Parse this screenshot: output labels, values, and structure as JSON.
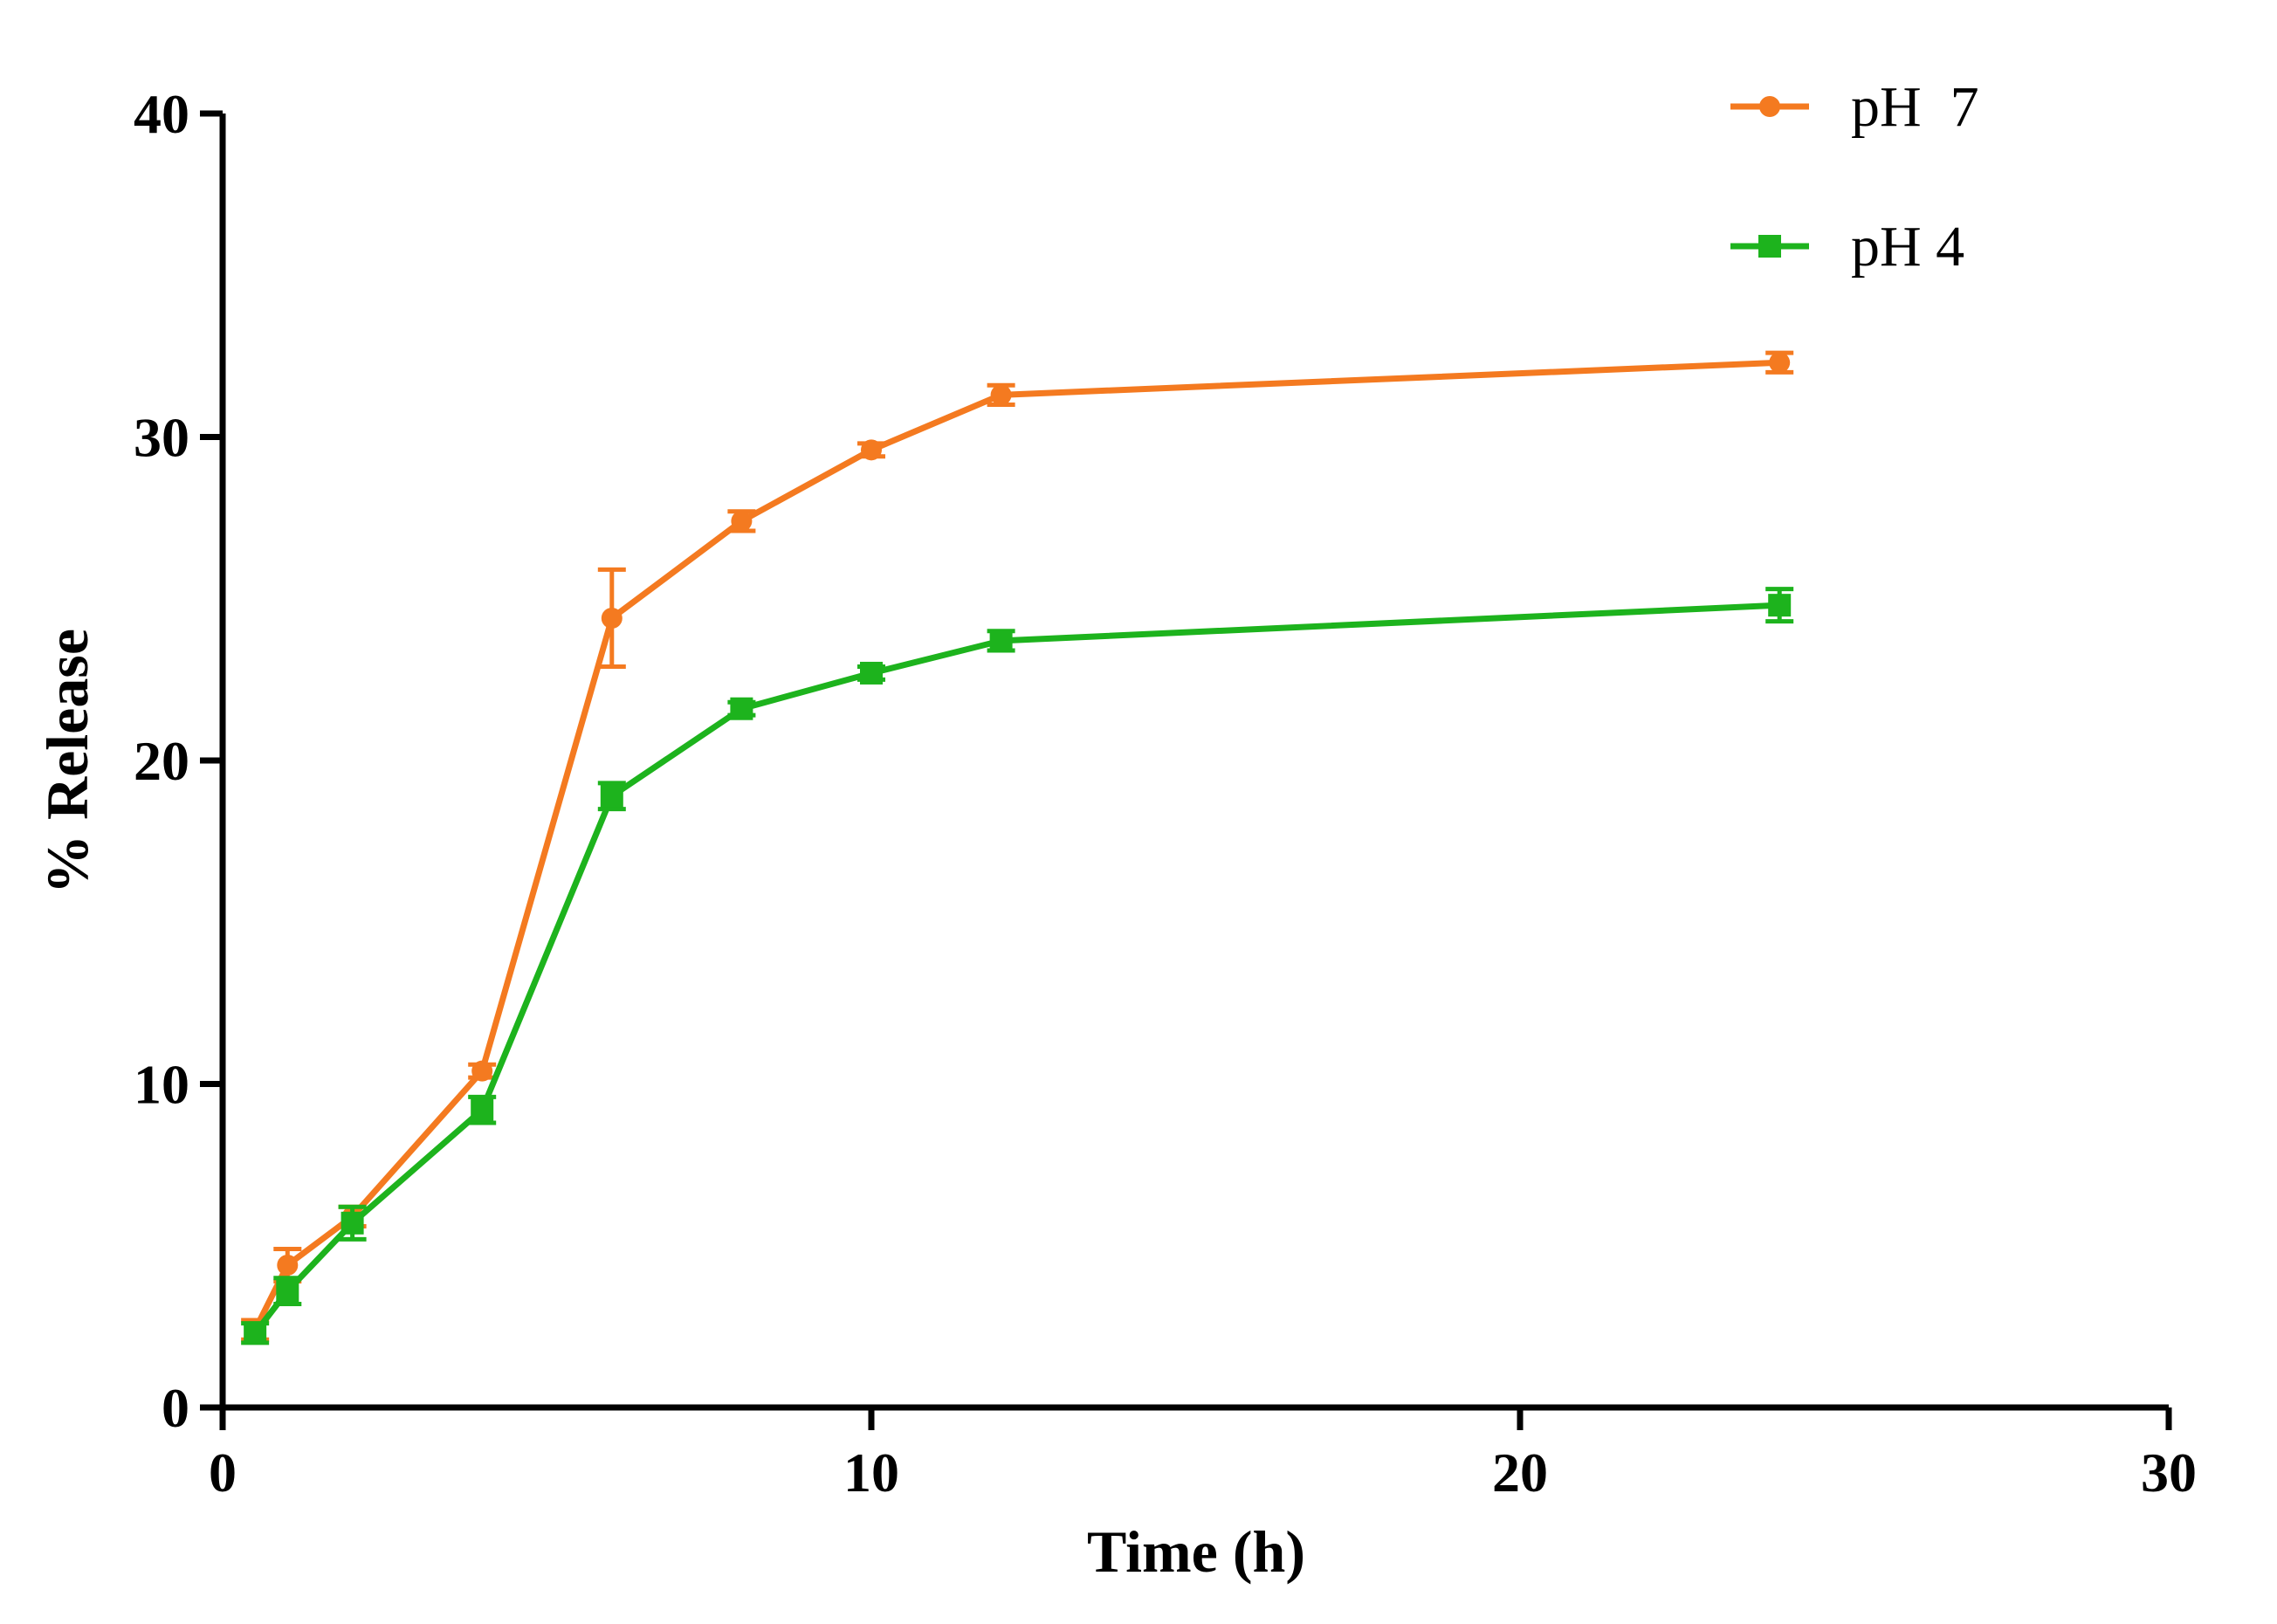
{
  "chart_data": {
    "type": "line",
    "title": "",
    "xlabel": "Time (h)",
    "ylabel": "% Release",
    "xlim": [
      0,
      30
    ],
    "ylim": [
      0,
      40
    ],
    "xticks": [
      0,
      10,
      20,
      30
    ],
    "yticks": [
      0,
      10,
      20,
      30,
      40
    ],
    "grid": false,
    "legend_position": "top-right",
    "series": [
      {
        "name": "pH  7",
        "color": "#f47a20",
        "marker": "circle",
        "x": [
          0.5,
          1,
          2,
          4,
          6,
          8,
          10,
          12,
          24
        ],
        "y": [
          2.4,
          4.4,
          5.9,
          10.4,
          24.4,
          27.4,
          29.6,
          31.3,
          32.3
        ],
        "error": [
          0.3,
          0.5,
          0.3,
          0.2,
          1.5,
          0.3,
          0.2,
          0.3,
          0.3
        ]
      },
      {
        "name": "pH 4",
        "color": "#1db31d",
        "marker": "square",
        "x": [
          0.5,
          1,
          2,
          4,
          6,
          8,
          10,
          12,
          24
        ],
        "y": [
          2.3,
          3.6,
          5.7,
          9.2,
          18.9,
          21.6,
          22.7,
          23.7,
          24.8
        ],
        "error": [
          0.3,
          0.4,
          0.5,
          0.4,
          0.4,
          0.2,
          0.2,
          0.3,
          0.5
        ]
      }
    ]
  }
}
